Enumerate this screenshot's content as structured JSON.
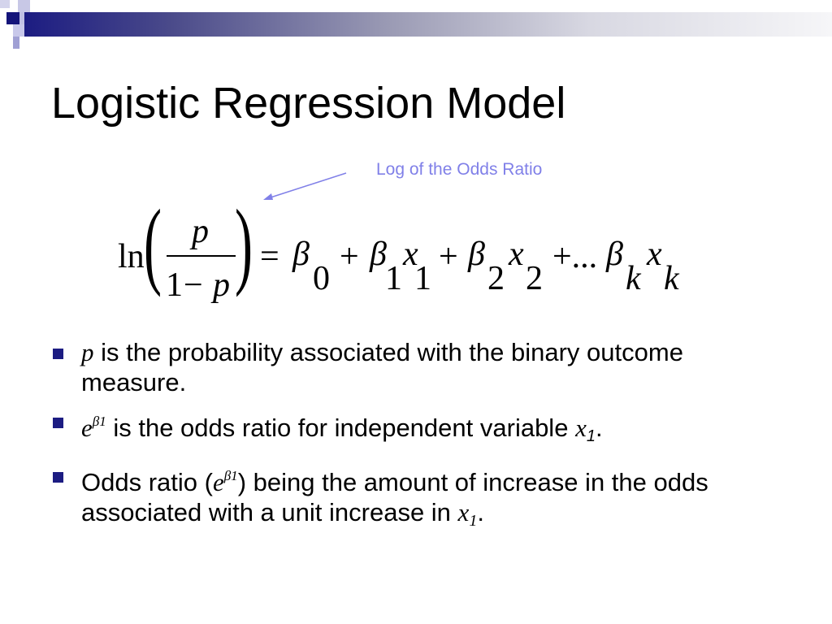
{
  "slide": {
    "title": "Logistic Regression Model",
    "annotation": "Log of the Odds Ratio",
    "accent_color": "#1c1c82",
    "annotation_color": "#8080e8",
    "equation": {
      "ln": "ln",
      "numerator": "p",
      "denominator_one": "1",
      "minus": "−",
      "denominator_p": "p",
      "equals": "=",
      "beta": "β",
      "plus": "+",
      "ellipsis": "+...",
      "x": "x",
      "sub0": "0",
      "sub1": "1",
      "sub2": "2",
      "subk": "k"
    },
    "bullets": [
      {
        "var": "p",
        "text": " is the probability associated with the binary outcome measure."
      },
      {
        "var": "e",
        "sup": "β1",
        "text": " is the odds ratio for independent variable ",
        "var2": "x",
        "sub": "1",
        "end": "."
      },
      {
        "pre": "Odds ratio (",
        "var": "e",
        "sup": "β1",
        "text": ") being the amount of increase in the odds associated with a unit increase in ",
        "var2": "x",
        "sub": "1",
        "end": "."
      }
    ]
  }
}
